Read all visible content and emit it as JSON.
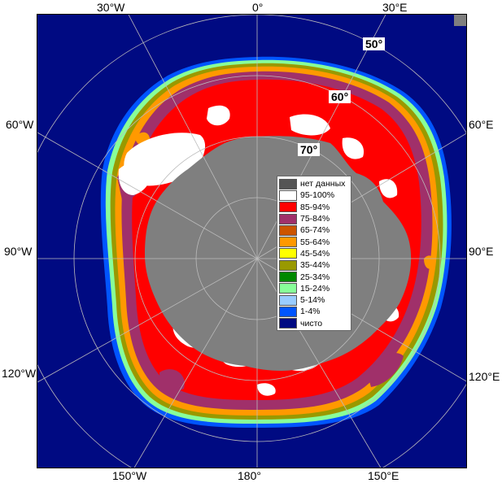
{
  "map": {
    "ocean_color": "#000a82",
    "land_color": "#7f7f7f",
    "border_color": "#555555",
    "edge_labels": {
      "top_left": "30°W",
      "top_center": "0°",
      "top_right": "30°E",
      "left_upper": "60°W",
      "left_middle": "90°W",
      "left_lower": "120°W",
      "right_upper": "60°E",
      "right_middle": "90°E",
      "right_lower": "120°E",
      "bottom_left": "150°W",
      "bottom_center": "180°",
      "bottom_right": "150°E"
    },
    "latitude_labels": {
      "lat50": "50°",
      "lat60": "60°",
      "lat70": "70°"
    }
  },
  "legend": {
    "items": [
      {
        "label": "нет данных",
        "color": "#555555"
      },
      {
        "label": "95-100%",
        "color": "#ffffff"
      },
      {
        "label": "85-94%",
        "color": "#ff0000"
      },
      {
        "label": "75-84%",
        "color": "#a0306a"
      },
      {
        "label": "65-74%",
        "color": "#cc5500"
      },
      {
        "label": "55-64%",
        "color": "#ff9900"
      },
      {
        "label": "45-54%",
        "color": "#ffff00"
      },
      {
        "label": "35-44%",
        "color": "#999900"
      },
      {
        "label": "25-34%",
        "color": "#008800"
      },
      {
        "label": "15-24%",
        "color": "#88ff99"
      },
      {
        "label": "5-14%",
        "color": "#99ccff"
      },
      {
        "label": "1-4%",
        "color": "#0055ff"
      },
      {
        "label": "чисто",
        "color": "#000a82"
      }
    ]
  }
}
